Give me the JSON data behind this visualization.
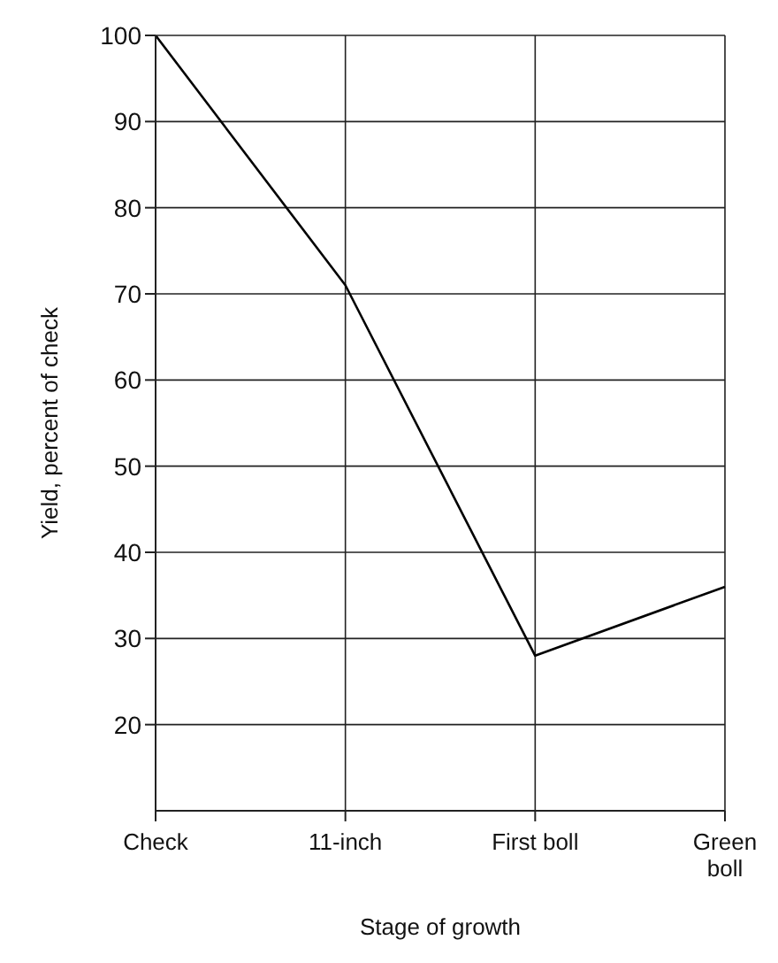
{
  "chart_data": {
    "type": "line",
    "xlabel": "Stage of growth",
    "ylabel": "Yield, percent of check",
    "categories": [
      "Check",
      "11-inch",
      "First boll",
      "Green boll"
    ],
    "series": [
      {
        "color": "#000000",
        "values": [
          100,
          71,
          28,
          36
        ]
      }
    ],
    "ylim": [
      10,
      100
    ],
    "yticks": [
      20,
      30,
      40,
      50,
      60,
      70,
      80,
      90,
      100
    ],
    "grid": true,
    "legend": false,
    "marker": "none",
    "line_style": "solid"
  }
}
